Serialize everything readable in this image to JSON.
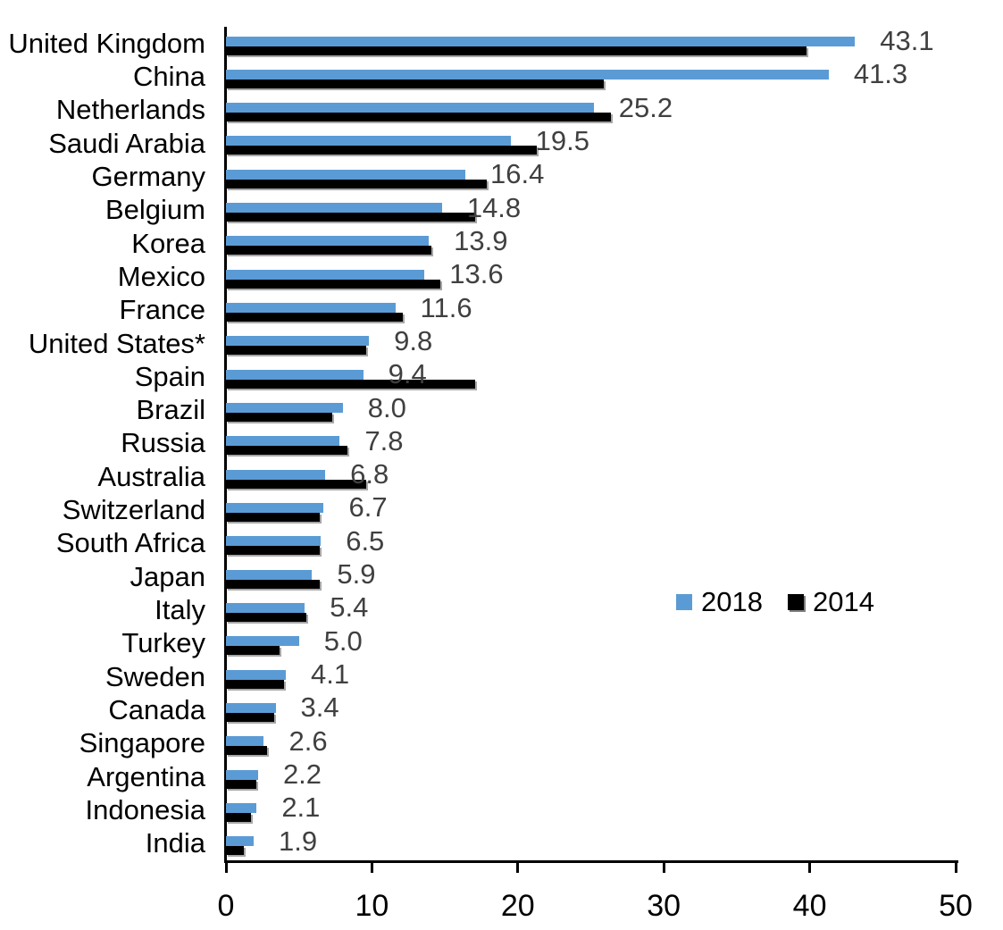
{
  "chart_data": {
    "type": "bar",
    "orientation": "horizontal",
    "title": "",
    "xlabel": "",
    "ylabel": "",
    "xlim": [
      0,
      50
    ],
    "x_tick_labels": [
      "0",
      "10",
      "20",
      "30",
      "40",
      "50"
    ],
    "grid": false,
    "legend": {
      "position": "center-right",
      "entries": [
        "2018",
        "2014"
      ]
    },
    "categories": [
      "United Kingdom",
      "China",
      "Netherlands",
      "Saudi Arabia",
      "Germany",
      "Belgium",
      "Korea",
      "Mexico",
      "France",
      "United States*",
      "Spain",
      "Brazil",
      "Russia",
      "Australia",
      "Switzerland",
      "South Africa",
      "Japan",
      "Italy",
      "Turkey",
      "Sweden",
      "Canada",
      "Singapore",
      "Argentina",
      "Indonesia",
      "India"
    ],
    "series": [
      {
        "name": "2018",
        "color": "#5B9BD5",
        "values": [
          43.1,
          41.3,
          25.2,
          19.5,
          16.4,
          14.8,
          13.9,
          13.6,
          11.6,
          9.8,
          9.4,
          8.0,
          7.8,
          6.8,
          6.7,
          6.5,
          5.9,
          5.4,
          5.0,
          4.1,
          3.4,
          2.6,
          2.2,
          2.1,
          1.9
        ]
      },
      {
        "name": "2014",
        "color": "#000000",
        "values": [
          39.8,
          25.9,
          26.4,
          21.3,
          17.9,
          17.1,
          14.1,
          14.7,
          12.1,
          9.6,
          17.1,
          7.3,
          8.3,
          9.6,
          6.4,
          6.4,
          6.4,
          5.5,
          3.7,
          4.0,
          3.3,
          2.8,
          2.1,
          1.7,
          1.2
        ]
      }
    ],
    "value_labels": [
      "43.1",
      "41.3",
      "25.2",
      "19.5",
      "16.4",
      "14.8",
      "13.9",
      "13.6",
      "11.6",
      "9.8",
      "9.4",
      "8.0",
      "7.8",
      "6.8",
      "6.7",
      "6.5",
      "5.9",
      "5.4",
      "5.0",
      "4.1",
      "3.4",
      "2.6",
      "2.2",
      "2.1",
      "1.9"
    ],
    "value_labels_series": "2018"
  },
  "colors": {
    "bar_2018": "#5B9BD5",
    "bar_2014": "#000000",
    "value_label": "#404040",
    "axis": "#000000"
  }
}
